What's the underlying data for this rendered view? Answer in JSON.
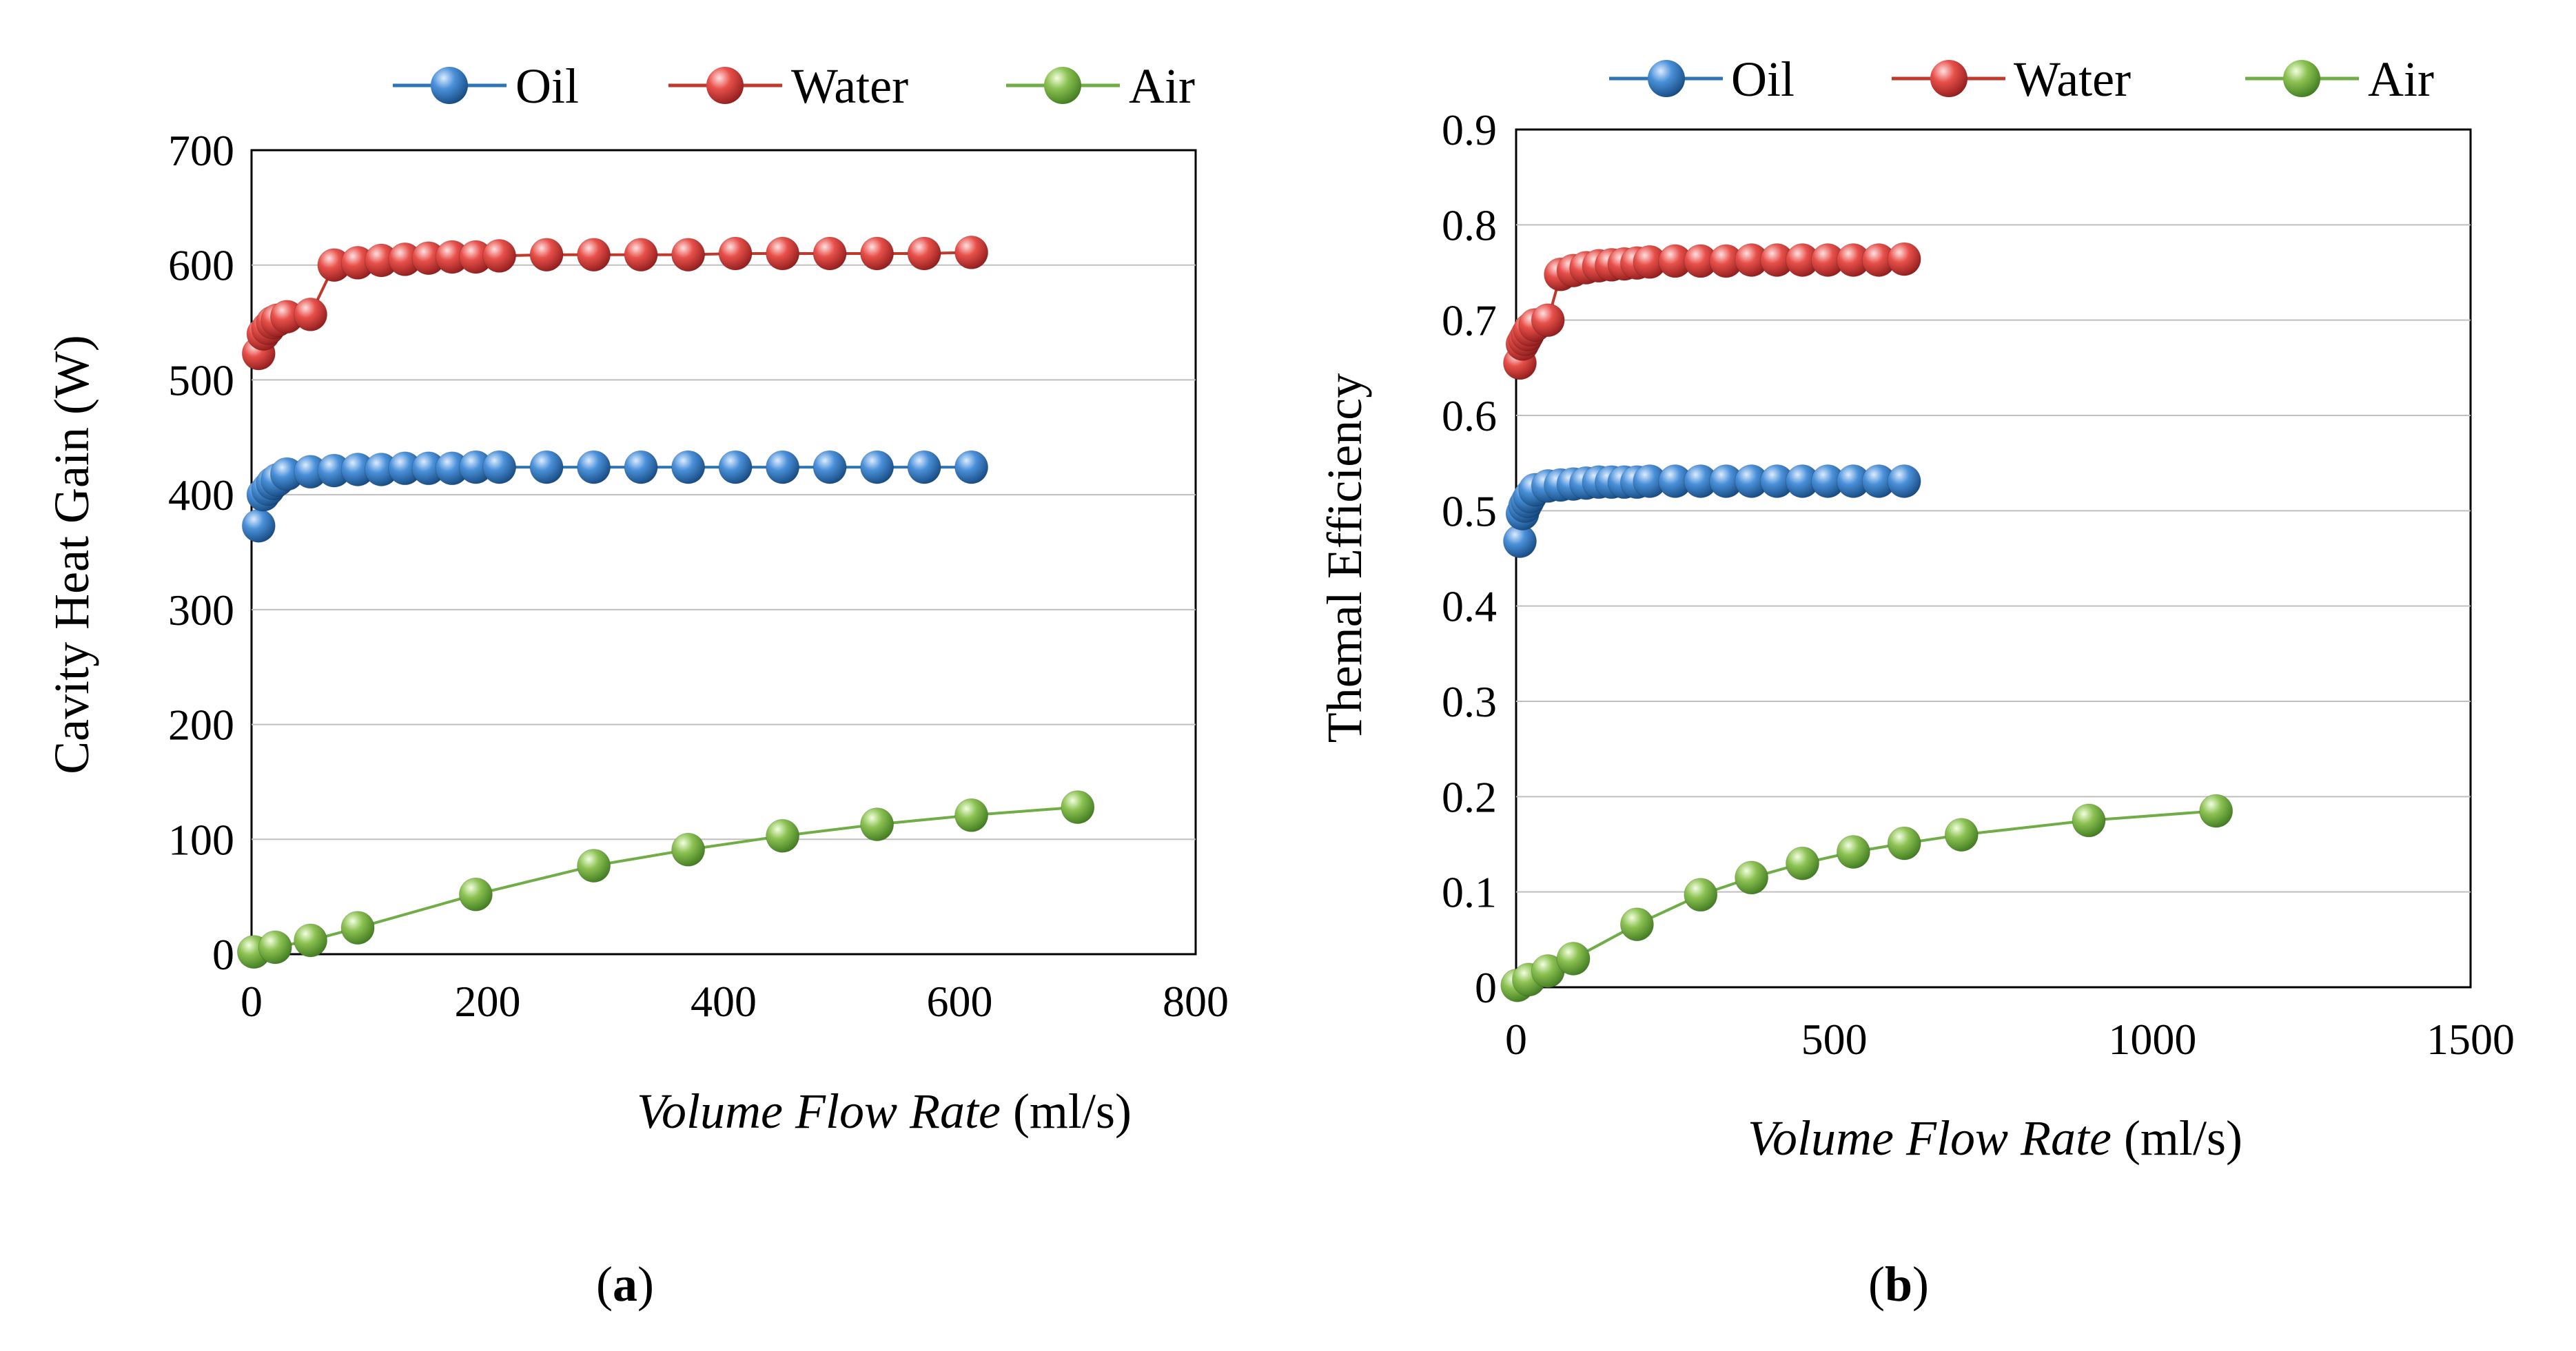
{
  "colors": {
    "oil": "#2e75b6",
    "water": "#e04545",
    "air": "#7ab648",
    "oil_line": "#2e75b6",
    "water_line": "#c0392b",
    "air_line": "#70ad47"
  },
  "chart_data": [
    {
      "type": "scatter",
      "id": "a",
      "caption": "a",
      "ylabel": "Cavity Heat Gain (W)",
      "xlabel_italic": "Volume Flow Rate",
      "xlabel_unit": " (ml/s)",
      "xlim": [
        0,
        800
      ],
      "ylim": [
        0,
        700
      ],
      "xticks": [
        0,
        200,
        400,
        600,
        800
      ],
      "yticks": [
        0,
        100,
        200,
        300,
        400,
        500,
        600,
        700
      ],
      "legend": [
        "Oil",
        "Water",
        "Air"
      ],
      "series": [
        {
          "name": "Oil",
          "key": "oil",
          "x": [
            6,
            10,
            14,
            18,
            22,
            30,
            50,
            70,
            90,
            110,
            130,
            150,
            170,
            190,
            210,
            250,
            290,
            330,
            370,
            410,
            450,
            490,
            530,
            570,
            610
          ],
          "y": [
            373,
            400,
            405,
            410,
            413,
            418,
            420,
            421,
            422,
            422,
            423,
            423,
            423,
            424,
            424,
            424,
            424,
            424,
            424,
            424,
            424,
            424,
            424,
            424,
            424
          ]
        },
        {
          "name": "Water",
          "key": "water",
          "x": [
            6,
            10,
            14,
            18,
            22,
            30,
            50,
            70,
            90,
            110,
            130,
            150,
            170,
            190,
            210,
            250,
            290,
            330,
            370,
            410,
            450,
            490,
            530,
            570,
            610
          ],
          "y": [
            523,
            540,
            545,
            550,
            552,
            555,
            557,
            600,
            602,
            604,
            605,
            606,
            607,
            607,
            608,
            609,
            609,
            609,
            609,
            610,
            610,
            610,
            610,
            610,
            611
          ]
        },
        {
          "name": "Air",
          "key": "air",
          "x": [
            2,
            20,
            50,
            90,
            190,
            290,
            370,
            450,
            530,
            610,
            700
          ],
          "y": [
            2,
            6,
            12,
            23,
            52,
            77,
            91,
            103,
            113,
            121,
            128
          ]
        }
      ]
    },
    {
      "type": "scatter",
      "id": "b",
      "caption": "b",
      "ylabel": "Themal Efficiency",
      "xlabel_italic": "Volume Flow Rate",
      "xlabel_unit": " (ml/s)",
      "xlim": [
        0,
        1500
      ],
      "ylim": [
        0,
        0.9
      ],
      "xticks": [
        0,
        500,
        1000,
        1500
      ],
      "yticks": [
        0,
        0.1,
        0.2,
        0.3,
        0.4,
        0.5,
        0.6,
        0.7,
        0.8,
        0.9
      ],
      "legend": [
        "Oil",
        "Water",
        "Air"
      ],
      "series": [
        {
          "name": "Oil",
          "key": "oil",
          "x": [
            6,
            10,
            14,
            18,
            22,
            30,
            50,
            70,
            90,
            110,
            130,
            150,
            170,
            190,
            210,
            250,
            290,
            330,
            370,
            410,
            450,
            490,
            530,
            570,
            610
          ],
          "y": [
            0.468,
            0.497,
            0.505,
            0.51,
            0.515,
            0.522,
            0.526,
            0.527,
            0.528,
            0.529,
            0.53,
            0.53,
            0.53,
            0.53,
            0.531,
            0.531,
            0.531,
            0.531,
            0.531,
            0.531,
            0.531,
            0.531,
            0.531,
            0.531,
            0.531
          ]
        },
        {
          "name": "Water",
          "key": "water",
          "x": [
            6,
            10,
            14,
            18,
            22,
            30,
            50,
            70,
            90,
            110,
            130,
            150,
            170,
            190,
            210,
            250,
            290,
            330,
            370,
            410,
            450,
            490,
            530,
            570,
            610
          ],
          "y": [
            0.655,
            0.675,
            0.68,
            0.685,
            0.69,
            0.695,
            0.7,
            0.748,
            0.752,
            0.755,
            0.757,
            0.758,
            0.759,
            0.76,
            0.761,
            0.762,
            0.762,
            0.762,
            0.763,
            0.763,
            0.763,
            0.763,
            0.763,
            0.763,
            0.764
          ]
        },
        {
          "name": "Air",
          "key": "air",
          "x": [
            2,
            20,
            50,
            90,
            190,
            290,
            370,
            450,
            530,
            610,
            700,
            900,
            1100
          ],
          "y": [
            0.002,
            0.008,
            0.017,
            0.03,
            0.066,
            0.097,
            0.115,
            0.13,
            0.142,
            0.151,
            0.16,
            0.175,
            0.185
          ]
        }
      ]
    }
  ]
}
